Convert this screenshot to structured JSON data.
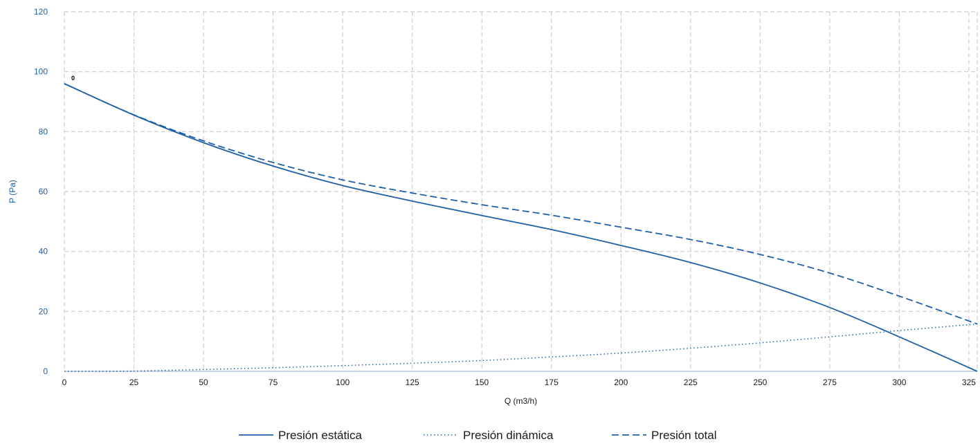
{
  "chart_data": {
    "type": "line",
    "title": "",
    "xlabel": "Q (m3/h)",
    "ylabel": "P (Pa)",
    "xlim": [
      0,
      328
    ],
    "ylim": [
      0,
      120
    ],
    "xticks": [
      0,
      25,
      50,
      75,
      100,
      125,
      150,
      175,
      200,
      225,
      250,
      275,
      300,
      325
    ],
    "yticks": [
      0,
      20,
      40,
      60,
      80,
      100,
      120
    ],
    "grid": true,
    "legend_position": "bottom-center",
    "colors": {
      "series": "#1d5fa8",
      "axis_text": "#1d5fa8",
      "grid": "#cccccc"
    },
    "point_annotation": {
      "label": "0",
      "x": 0,
      "y": 96
    },
    "series": [
      {
        "name": "Presión estática",
        "style": "solid",
        "x": [
          0,
          25,
          50,
          75,
          100,
          125,
          150,
          175,
          200,
          225,
          250,
          275,
          300,
          328
        ],
        "y": [
          96,
          85.5,
          76.3,
          68.5,
          62,
          56.8,
          52,
          47.3,
          42,
          36.3,
          29.5,
          21.3,
          11.5,
          0
        ]
      },
      {
        "name": "Presión dinámica",
        "style": "dotted",
        "x": [
          0,
          25,
          50,
          75,
          100,
          125,
          150,
          175,
          200,
          225,
          250,
          275,
          300,
          328
        ],
        "y": [
          0,
          0.1,
          0.6,
          1.2,
          1.9,
          2.7,
          3.6,
          4.8,
          6.1,
          7.7,
          9.5,
          11.5,
          13.6,
          15.8
        ]
      },
      {
        "name": "Presión total",
        "style": "dashed",
        "x": [
          0,
          25,
          50,
          75,
          100,
          125,
          150,
          175,
          200,
          225,
          250,
          275,
          300,
          328
        ],
        "y": [
          96,
          85.6,
          76.9,
          69.7,
          63.9,
          59.5,
          55.6,
          52.1,
          48.1,
          44,
          39,
          32.8,
          25.1,
          15.8
        ]
      }
    ]
  }
}
